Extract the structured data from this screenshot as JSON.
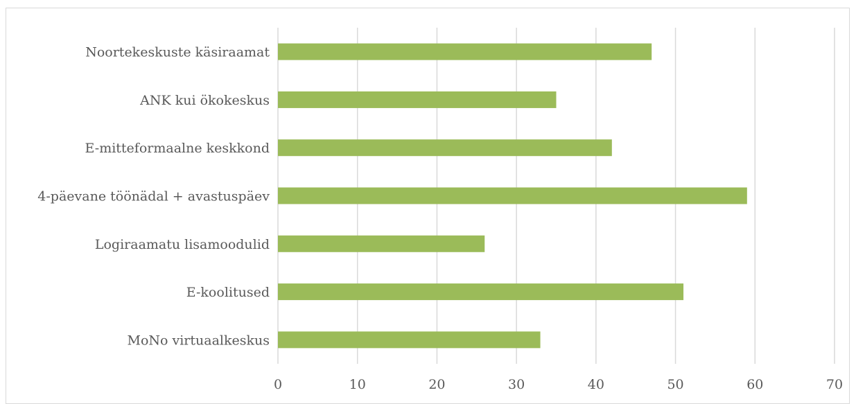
{
  "chart_data": {
    "type": "bar",
    "orientation": "horizontal",
    "categories": [
      "Noortekeskuste käsiraamat",
      "ANK kui ökokeskus",
      "E-mitteformaalne keskkond",
      "4-päevane töönädal + avastuspäev",
      "Logiraamatu lisamoodulid",
      "E-koolitused",
      "MoNo virtuaalkeskus"
    ],
    "values": [
      47,
      35,
      42,
      59,
      26,
      51,
      33
    ],
    "xlim": [
      0,
      70
    ],
    "xticks": [
      "0",
      "10",
      "20",
      "30",
      "40",
      "50",
      "60",
      "70"
    ],
    "title": "",
    "xlabel": "",
    "ylabel": "",
    "grid": "vertical",
    "legend": "none",
    "colors": {
      "bar": "#9bbb59",
      "grid": "#d9d9d9",
      "text": "#595959"
    }
  }
}
